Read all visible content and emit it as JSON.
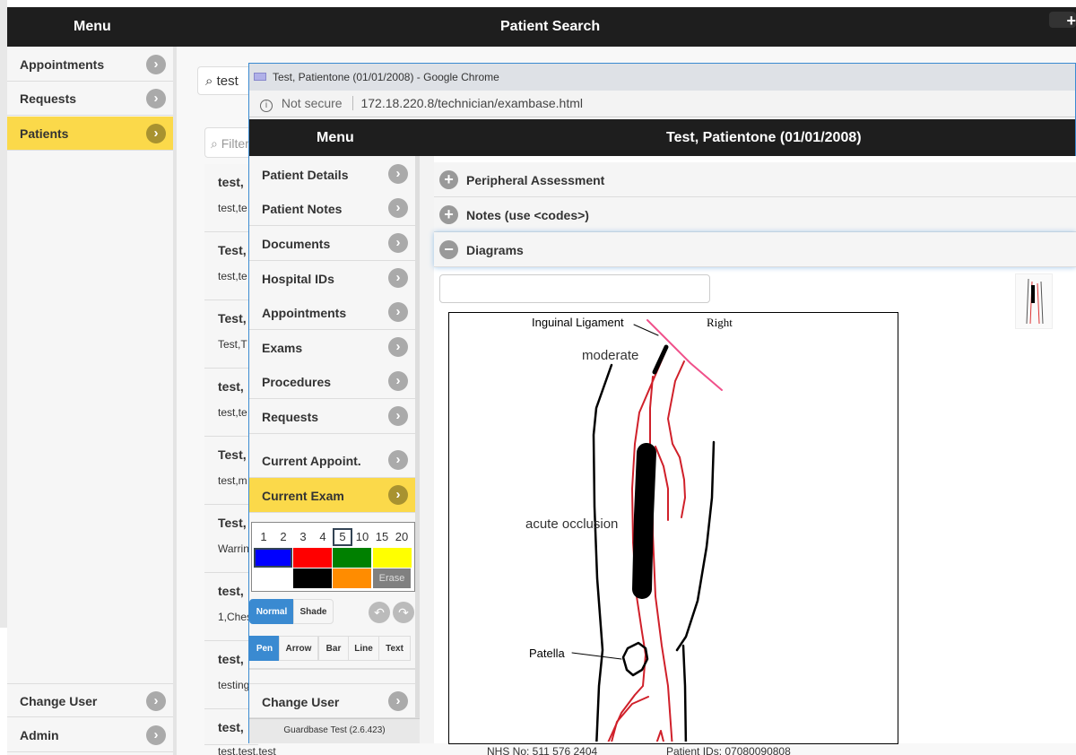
{
  "outer": {
    "menu_title": "Menu",
    "page_title": "Patient Search",
    "add_icon": "plus-icon",
    "search_value": "test",
    "filter_placeholder": "Filter",
    "nav": [
      {
        "label": "Appointments"
      },
      {
        "label": "Requests"
      },
      {
        "label": "Patients",
        "active": true
      }
    ],
    "bottom_nav": [
      {
        "label": "Change User"
      },
      {
        "label": "Admin"
      }
    ],
    "cards": [
      {
        "title": "test,",
        "sub": "test,te"
      },
      {
        "title": "Test,",
        "sub": "test,te"
      },
      {
        "title": "Test,",
        "sub": "Test,T"
      },
      {
        "title": "test,",
        "sub": "test,te"
      },
      {
        "title": "Test,",
        "sub": "test,m"
      },
      {
        "title": "Test,",
        "sub": "Warrin"
      },
      {
        "title": "test,",
        "sub": "1,Ches"
      },
      {
        "title": "test,",
        "sub": "testing"
      },
      {
        "title": "test,",
        "sub": "test,test,test"
      }
    ],
    "footer": {
      "nhs": "NHS No: 511 576 2404",
      "ids": "Patient IDs: 07080090808"
    }
  },
  "popup": {
    "window_title": "Test, Patientone (01/01/2008) - Google Chrome",
    "security": "Not secure",
    "url": "172.18.220.8/technician/exambase.html",
    "menu_title": "Menu",
    "patient_title": "Test, Patientone (01/01/2008)",
    "nav": [
      {
        "label": "Patient Details"
      },
      {
        "label": "Patient Notes"
      },
      {
        "label": "Documents"
      },
      {
        "label": "Hospital IDs"
      },
      {
        "label": "Appointments"
      },
      {
        "label": "Exams"
      },
      {
        "label": "Procedures"
      },
      {
        "label": "Requests"
      },
      {
        "label": "Current Appoint."
      },
      {
        "label": "Current Exam",
        "active": true
      }
    ],
    "sizes": [
      "1",
      "2",
      "3",
      "4",
      "5",
      "10",
      "15",
      "20"
    ],
    "selected_size": "5",
    "colors": [
      "#0000ff",
      "#ff0000",
      "#008000",
      "#ffff00",
      "#ffffff",
      "#000000",
      "#ff8c00"
    ],
    "selected_color": "#0000ff",
    "erase_label": "Erase",
    "modes": [
      {
        "label": "Normal",
        "active": true
      },
      {
        "label": "Shade"
      }
    ],
    "tools": [
      {
        "label": "Pen",
        "active": true
      },
      {
        "label": "Arrow"
      },
      {
        "label": "Bar"
      },
      {
        "label": "Line"
      },
      {
        "label": "Text"
      }
    ],
    "change_user": "Change User",
    "version": "Guardbase Test (2.6.423)",
    "sections": [
      {
        "label": "Peripheral Assessment",
        "icon": "plus"
      },
      {
        "label": "Notes (use <codes>)",
        "icon": "plus"
      },
      {
        "label": "Diagrams",
        "icon": "minus"
      }
    ],
    "diagram": {
      "labels": {
        "inguinal": "Inguinal Ligament",
        "side": "Right",
        "moderate": "moderate",
        "occlusion": "acute occlusion",
        "patella": "Patella"
      }
    }
  }
}
